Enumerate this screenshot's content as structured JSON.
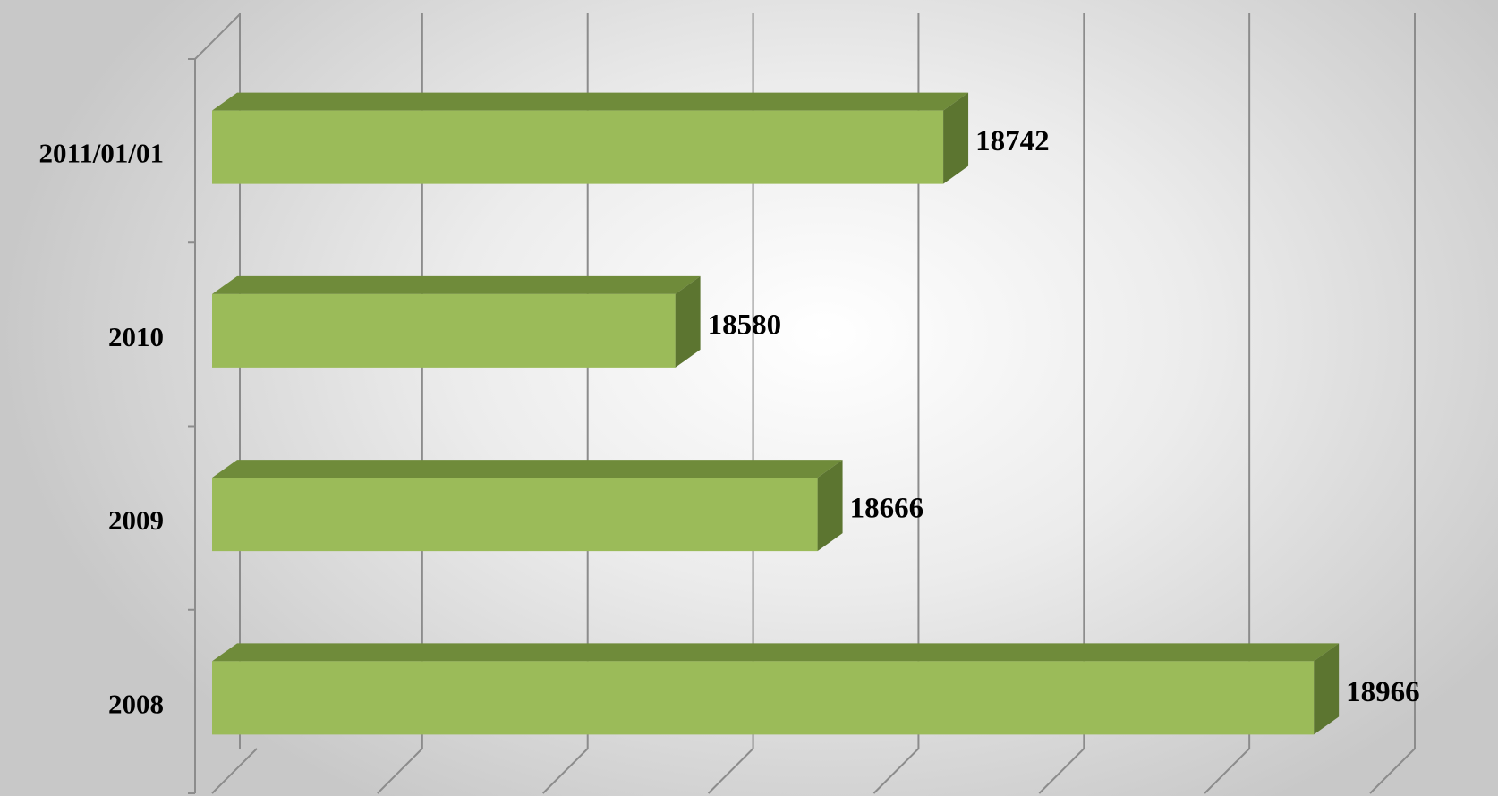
{
  "chart_data": {
    "type": "bar",
    "orientation": "horizontal",
    "style": "3d",
    "categories": [
      "2011/01/01",
      "2010",
      "2009",
      "2008"
    ],
    "values": [
      18742,
      18580,
      18666,
      18966
    ],
    "xlim": [
      18300,
      19000
    ],
    "grid": true,
    "legend": "none",
    "colors": {
      "bar_front": "#9bbb59",
      "bar_top": "#6f8b3a",
      "bar_side": "#5c7530",
      "grid": "#8c8c8c"
    }
  }
}
